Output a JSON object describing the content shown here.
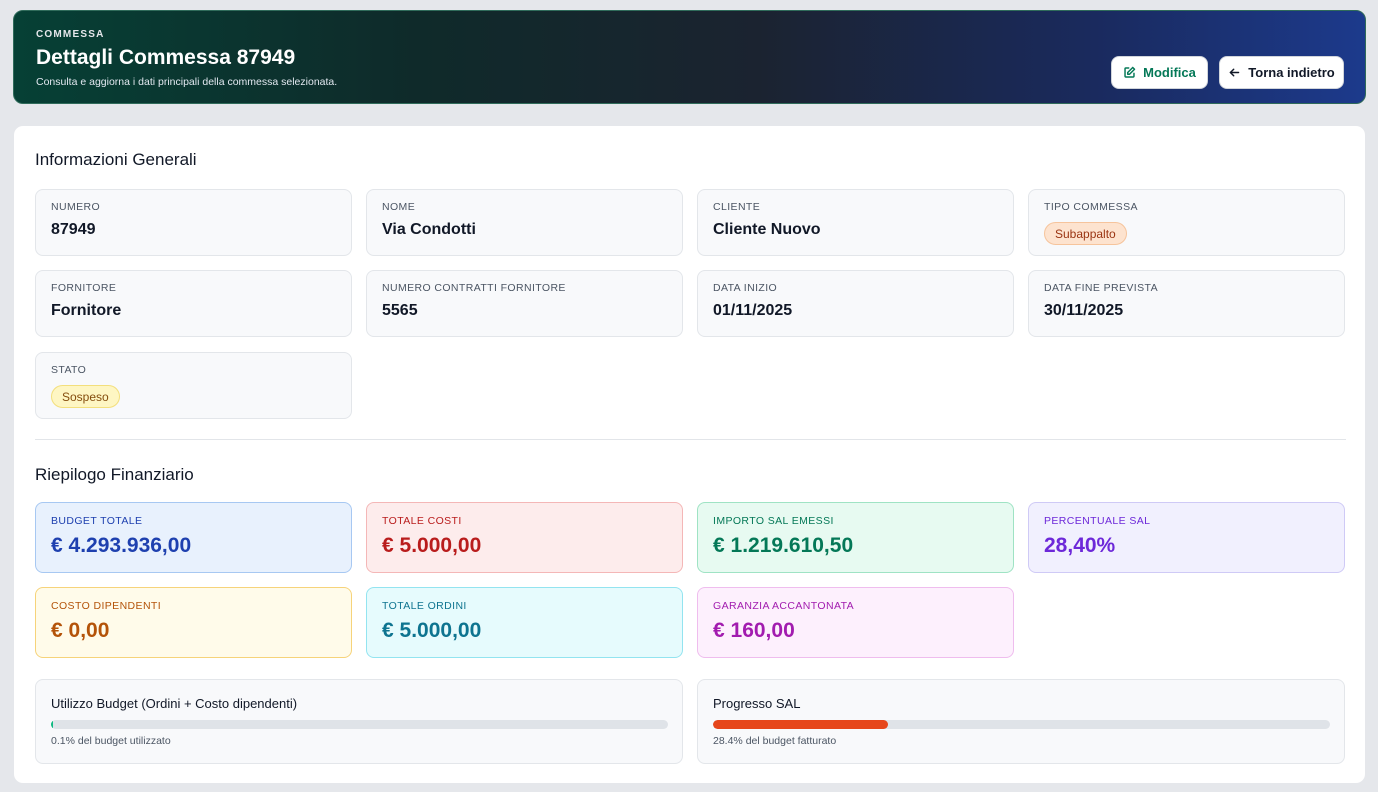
{
  "header": {
    "eyebrow": "COMMESSA",
    "title": "Dettagli Commessa 87949",
    "subtitle": "Consulta e aggiorna i dati principali della commessa selezionata.",
    "edit_label": "Modifica",
    "back_label": "Torna indietro"
  },
  "general": {
    "title": "Informazioni Generali",
    "numero": {
      "label": "NUMERO",
      "value": "87949"
    },
    "nome": {
      "label": "NOME",
      "value": "Via Condotti"
    },
    "cliente": {
      "label": "CLIENTE",
      "value": "Cliente Nuovo"
    },
    "tipo": {
      "label": "TIPO COMMESSA",
      "value": "Subappalto"
    },
    "fornitore": {
      "label": "FORNITORE",
      "value": "Fornitore"
    },
    "contratti": {
      "label": "NUMERO CONTRATTI FORNITORE",
      "value": "5565"
    },
    "data_inizio": {
      "label": "DATA INIZIO",
      "value": "01/11/2025"
    },
    "data_fine": {
      "label": "DATA FINE PREVISTA",
      "value": "30/11/2025"
    },
    "stato": {
      "label": "STATO",
      "value": "Sospeso"
    }
  },
  "financial": {
    "title": "Riepilogo Finanziario",
    "budget": {
      "label": "BUDGET TOTALE",
      "value": "€ 4.293.936,00"
    },
    "costi": {
      "label": "TOTALE COSTI",
      "value": "€ 5.000,00"
    },
    "sal": {
      "label": "IMPORTO SAL EMESSI",
      "value": "€ 1.219.610,50"
    },
    "perc_sal": {
      "label": "PERCENTUALE SAL",
      "value": "28,40%"
    },
    "dipendenti": {
      "label": "COSTO DIPENDENTI",
      "value": "€ 0,00"
    },
    "ordini": {
      "label": "TOTALE ORDINI",
      "value": "€ 5.000,00"
    },
    "garanzia": {
      "label": "GARANZIA ACCANTONATA",
      "value": "€ 160,00"
    }
  },
  "progress": {
    "budget": {
      "label": "Utilizzo Budget (Ordini + Costo dipendenti)",
      "note": "0.1% del budget utilizzato",
      "percent": 0.1
    },
    "sal": {
      "label": "Progresso SAL",
      "note": "28.4% del budget fatturato",
      "percent": 28.4
    }
  },
  "colors": {
    "budget_fill": "#10b981",
    "sal_fill": "#e6461b",
    "edit_accent": "#047857"
  }
}
